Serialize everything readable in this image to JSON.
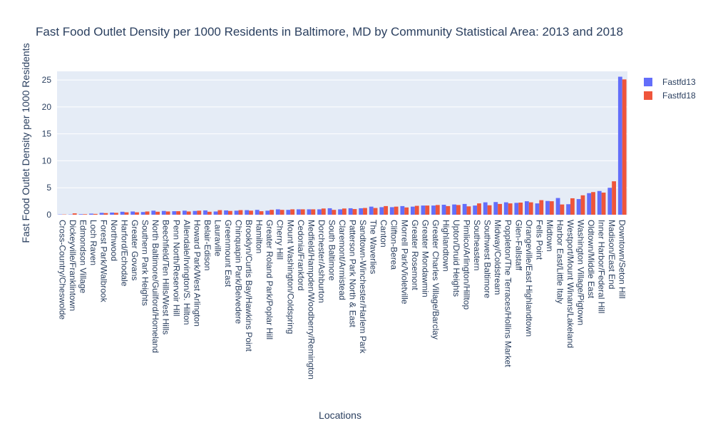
{
  "chart_data": {
    "type": "bar",
    "title": "Fast Food Outlet Density per 1000 Residents in Baltimore, MD by Community Statistical Area: 2013 and 2018",
    "xlabel": "Locations",
    "ylabel": "Fast Food Outlet Density per 1000 Residents",
    "ylim": [
      0,
      26.6
    ],
    "yticks": [
      "0",
      "5",
      "10",
      "15",
      "20",
      "25"
    ],
    "legend_position": "top-right",
    "grid": true,
    "colors": {
      "Fastfd13": "#636efa",
      "Fastfd18": "#ef553b",
      "plot_bg": "#e5ecf6",
      "grid": "#ffffff",
      "text": "#2a3f5f"
    },
    "categories": [
      "Cross-Country/Cheswolde",
      "Dickeyville/Franklintown",
      "Edmondson Village",
      "Loch Raven",
      "Forest Park/Walbrook",
      "Northwood",
      "Harford/Echodale",
      "Greater Govans",
      "Southern Park Heights",
      "North Baltimore/Guilford/Homeland",
      "Beechfield/Ten Hills/West Hills",
      "Penn North/Reservoir Hill",
      "Allendale/Irvington/S. Hilton",
      "Howard Park/West Arlington",
      "Belair-Edison",
      "Lauraville",
      "Greenmount East",
      "Chinquapin Park/Belvedere",
      "Brooklyn/Curtis Bay/Hawkins Point",
      "Hamilton",
      "Greater Roland Park/Poplar Hill",
      "Cherry Hill",
      "Mount Washington/Coldspring",
      "Cedonia/Frankford",
      "Medfield/Hampden/Woodberry/Remington",
      "Dorchester/Ashburton",
      "South Baltimore",
      "Claremont/Armistead",
      "Patterson Park North & East",
      "Sandtown-Winchester/Harlem Park",
      "The Waverlies",
      "Canton",
      "Clifton-Berea",
      "Morrell Park/Violetville",
      "Greater Rosemont",
      "Greater Mondawmin",
      "Greater Charles Village/Barclay",
      "Highlandtown",
      "Upton/Druid Heights",
      "Pimlico/Arlington/Hilltop",
      "Southeastern",
      "Southwest Baltimore",
      "Midway/Coldstream",
      "Poppleton/The Terraces/Hollins Market",
      "Glen-Fallstaff",
      "Orangeville/East Highlandtown",
      "Fells Point",
      "Midtown",
      "Harbor East/Little Italy",
      "Westport/Mount Winans/Lakeland",
      "Washington Village/Pigtown",
      "Oldtown/Middle East",
      "Inner Harbor/Federal Hill",
      "Madison/East End",
      "Downtown/Seton Hill"
    ],
    "series": [
      {
        "name": "Fastfd13",
        "values": [
          0.05,
          0.05,
          0.1,
          0.2,
          0.35,
          0.4,
          0.55,
          0.6,
          0.5,
          0.75,
          0.7,
          0.65,
          0.75,
          0.7,
          0.8,
          0.6,
          0.8,
          0.75,
          0.85,
          0.9,
          0.75,
          1.0,
          0.9,
          1.0,
          1.0,
          1.0,
          1.2,
          1.0,
          1.2,
          1.2,
          1.5,
          1.4,
          1.4,
          1.6,
          1.5,
          1.7,
          1.7,
          1.85,
          1.9,
          2.0,
          1.7,
          2.3,
          2.35,
          2.3,
          2.2,
          2.5,
          2.1,
          2.55,
          3.1,
          1.95,
          2.9,
          4.0,
          4.4,
          5.0,
          25.6
        ]
      },
      {
        "name": "Fastfd18",
        "values": [
          0.05,
          0.25,
          0.1,
          0.15,
          0.3,
          0.35,
          0.45,
          0.45,
          0.6,
          0.55,
          0.6,
          0.65,
          0.6,
          0.75,
          0.55,
          0.85,
          0.7,
          0.85,
          0.75,
          0.65,
          0.9,
          0.9,
          1.0,
          1.0,
          1.0,
          1.15,
          0.9,
          1.15,
          1.05,
          1.25,
          1.25,
          1.6,
          1.5,
          1.35,
          1.65,
          1.7,
          1.8,
          1.6,
          1.8,
          1.55,
          2.1,
          1.75,
          2.0,
          2.1,
          2.25,
          2.3,
          2.7,
          2.5,
          1.9,
          3.05,
          3.6,
          4.2,
          4.1,
          6.2,
          25.1
        ]
      }
    ]
  }
}
